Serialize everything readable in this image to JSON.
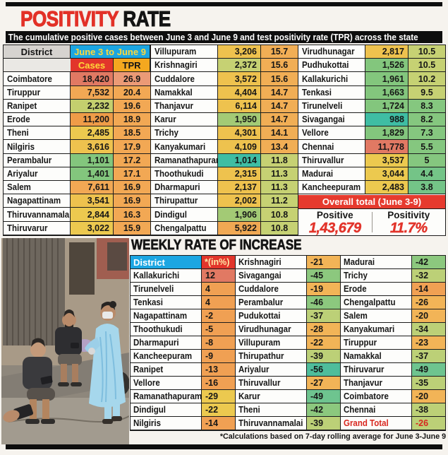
{
  "header": {
    "title_red": "POSITIVITY",
    "title_rest": " RATE",
    "subtitle": "The cumulative positive cases between June 3 and June 9 and test positivity rate (TPR) across the state"
  },
  "colors": {
    "accent_red": "#e2352b",
    "accent_blue": "#1ca6e2",
    "accent_orange_header": "#f4a81f",
    "header_yellow_text": "#ffd83a"
  },
  "main_table": {
    "headers": {
      "district": "District",
      "period": "June 3 to June 9",
      "cases": "Cases",
      "tpr": "TPR"
    },
    "groups": [
      {
        "rows": [
          {
            "district": "Coimbatore",
            "cases": "18,420",
            "tpr": "26.9",
            "cases_bg": "#e17963",
            "tpr_bg": "#eb9a76"
          },
          {
            "district": "Tiruppur",
            "cases": "7,532",
            "tpr": "20.4",
            "cases_bg": "#f2a854",
            "tpr_bg": "#f2a854"
          },
          {
            "district": "Ranipet",
            "cases": "2,232",
            "tpr": "19.6",
            "cases_bg": "#c4cf6e",
            "tpr_bg": "#f2a854"
          },
          {
            "district": "Erode",
            "cases": "11,200",
            "tpr": "18.9",
            "cases_bg": "#ef9c48",
            "tpr_bg": "#f2a854"
          },
          {
            "district": "Theni",
            "cases": "2,485",
            "tpr": "18.5",
            "cases_bg": "#ecc94f",
            "tpr_bg": "#f2a854"
          },
          {
            "district": "Nilgiris",
            "cases": "3,616",
            "tpr": "17.9",
            "cases_bg": "#eec24e",
            "tpr_bg": "#f2a854"
          },
          {
            "district": "Perambalur",
            "cases": "1,101",
            "tpr": "17.2",
            "cases_bg": "#83c67d",
            "tpr_bg": "#f2a854"
          },
          {
            "district": "Ariyalur",
            "cases": "1,401",
            "tpr": "17.1",
            "cases_bg": "#83c67d",
            "tpr_bg": "#f2a854"
          },
          {
            "district": "Salem",
            "cases": "7,611",
            "tpr": "16.9",
            "cases_bg": "#f2a854",
            "tpr_bg": "#f2a854"
          },
          {
            "district": "Nagapattinam",
            "cases": "3,541",
            "tpr": "16.9",
            "cases_bg": "#eec24e",
            "tpr_bg": "#f2a854"
          },
          {
            "district": "Thiruvannamalai",
            "cases": "2,844",
            "tpr": "16.3",
            "cases_bg": "#ecc94f",
            "tpr_bg": "#f2a854"
          },
          {
            "district": "Thiruvarur",
            "cases": "3,022",
            "tpr": "15.9",
            "cases_bg": "#ecc94f",
            "tpr_bg": "#f2a854"
          }
        ]
      },
      {
        "rows": [
          {
            "district": "Villupuram",
            "cases": "3,206",
            "tpr": "15.7",
            "cases_bg": "#eec24e",
            "tpr_bg": "#f1ae55"
          },
          {
            "district": "Krishnagiri",
            "cases": "2,372",
            "tpr": "15.6",
            "cases_bg": "#c6d173",
            "tpr_bg": "#f1ae55"
          },
          {
            "district": "Cuddalore",
            "cases": "3,572",
            "tpr": "15.6",
            "cases_bg": "#eec24e",
            "tpr_bg": "#f1ae55"
          },
          {
            "district": "Namakkal",
            "cases": "4,404",
            "tpr": "14.7",
            "cases_bg": "#eec24e",
            "tpr_bg": "#f1ae55"
          },
          {
            "district": "Thanjavur",
            "cases": "6,114",
            "tpr": "14.7",
            "cases_bg": "#eec24e",
            "tpr_bg": "#f1ae55"
          },
          {
            "district": "Karur",
            "cases": "1,950",
            "tpr": "14.7",
            "cases_bg": "#a3ca75",
            "tpr_bg": "#f1ae55"
          },
          {
            "district": "Trichy",
            "cases": "4,301",
            "tpr": "14.1",
            "cases_bg": "#eec24e",
            "tpr_bg": "#f1ae55"
          },
          {
            "district": "Kanyakumari",
            "cases": "4,109",
            "tpr": "13.4",
            "cases_bg": "#eec24e",
            "tpr_bg": "#f1ae55"
          },
          {
            "district": "Ramanathapuram",
            "cases": "1,014",
            "tpr": "11.8",
            "cases_bg": "#3fbda3",
            "tpr_bg": "#c6d173"
          },
          {
            "district": "Thoothukudi",
            "cases": "2,315",
            "tpr": "11.3",
            "cases_bg": "#eec24e",
            "tpr_bg": "#c6d173"
          },
          {
            "district": "Dharmapuri",
            "cases": "2,137",
            "tpr": "11.3",
            "cases_bg": "#eec24e",
            "tpr_bg": "#c6d173"
          },
          {
            "district": "Thirupattur",
            "cases": "2,002",
            "tpr": "11.2",
            "cases_bg": "#eec24e",
            "tpr_bg": "#c6d173"
          },
          {
            "district": "Dindigul",
            "cases": "1,906",
            "tpr": "10.8",
            "cases_bg": "#a3ca75",
            "tpr_bg": "#c6d173"
          },
          {
            "district": "Chengalpattu",
            "cases": "5,922",
            "tpr": "10.8",
            "cases_bg": "#f0a853",
            "tpr_bg": "#c6d173"
          }
        ]
      },
      {
        "rows": [
          {
            "district": "Virudhunagar",
            "cases": "2,817",
            "tpr": "10.5",
            "cases_bg": "#eec24e",
            "tpr_bg": "#c6d173"
          },
          {
            "district": "Pudhukottai",
            "cases": "1,526",
            "tpr": "10.5",
            "cases_bg": "#83c67d",
            "tpr_bg": "#c6d173"
          },
          {
            "district": "Kallakurichi",
            "cases": "1,961",
            "tpr": "10.2",
            "cases_bg": "#83c67d",
            "tpr_bg": "#c6d173"
          },
          {
            "district": "Tenkasi",
            "cases": "1,663",
            "tpr": "9.5",
            "cases_bg": "#83c67d",
            "tpr_bg": "#c6d173"
          },
          {
            "district": "Tirunelveli",
            "cases": "1,724",
            "tpr": "8.3",
            "cases_bg": "#83c67d",
            "tpr_bg": "#85c77f"
          },
          {
            "district": "Sivagangai",
            "cases": "988",
            "tpr": "8.2",
            "cases_bg": "#3fbda3",
            "tpr_bg": "#85c77f"
          },
          {
            "district": "Vellore",
            "cases": "1,829",
            "tpr": "7.3",
            "cases_bg": "#83c67d",
            "tpr_bg": "#85c77f"
          },
          {
            "district": "Chennai",
            "cases": "11,778",
            "tpr": "5.5",
            "cases_bg": "#e17963",
            "tpr_bg": "#85c77f"
          },
          {
            "district": "Thiruvallur",
            "cases": "3,537",
            "tpr": "5",
            "cases_bg": "#ecc94f",
            "tpr_bg": "#85c77f"
          },
          {
            "district": "Madurai",
            "cases": "3,044",
            "tpr": "4.4",
            "cases_bg": "#ecc94f",
            "tpr_bg": "#74c487"
          },
          {
            "district": "Kancheepuram",
            "cases": "2,483",
            "tpr": "3.8",
            "cases_bg": "#ecc94f",
            "tpr_bg": "#74c487"
          }
        ]
      }
    ],
    "overall": {
      "banner_label": "Overall total (June 3-9)",
      "positive_label": "Positive",
      "positive_value": "1,43,679",
      "positivity_label": "Positivity",
      "positivity_value": "11.7%"
    }
  },
  "weekly": {
    "title": "WEEKLY RATE OF INCREASE",
    "headers": {
      "district": "District",
      "value": "*(in%)"
    },
    "groups": [
      {
        "rows": [
          {
            "district": "Kallakurichi",
            "value": "12",
            "bg": "#e17963"
          },
          {
            "district": "Tirunelveli",
            "value": "4",
            "bg": "#f0a053"
          },
          {
            "district": "Tenkasi",
            "value": "4",
            "bg": "#f0a053"
          },
          {
            "district": "Nagapattinam",
            "value": "-2",
            "bg": "#f0a053"
          },
          {
            "district": "Thoothukudi",
            "value": "-5",
            "bg": "#f0a053"
          },
          {
            "district": "Dharmapuri",
            "value": "-8",
            "bg": "#f0a053"
          },
          {
            "district": "Kancheepuram",
            "value": "-9",
            "bg": "#f0a053"
          },
          {
            "district": "Ranipet",
            "value": "-13",
            "bg": "#f0a053"
          },
          {
            "district": "Vellore",
            "value": "-16",
            "bg": "#f0a053"
          },
          {
            "district": "Ramanathapuram",
            "value": "-29",
            "bg": "#ecc94f"
          },
          {
            "district": "Dindigul",
            "value": "-22",
            "bg": "#ecc94f"
          },
          {
            "district": "Nilgiris",
            "value": "-14",
            "bg": "#f0a053"
          }
        ]
      },
      {
        "rows": [
          {
            "district": "Krishnagiri",
            "value": "-21",
            "bg": "#f2b457"
          },
          {
            "district": "Sivagangai",
            "value": "-45",
            "bg": "#8cc87e"
          },
          {
            "district": "Cuddalore",
            "value": "-19",
            "bg": "#f2b457"
          },
          {
            "district": "Perambalur",
            "value": "-46",
            "bg": "#8cc87e"
          },
          {
            "district": "Pudukottai",
            "value": "-37",
            "bg": "#bcd077"
          },
          {
            "district": "Virudhunagar",
            "value": "-28",
            "bg": "#f2b457"
          },
          {
            "district": "Villupuram",
            "value": "-22",
            "bg": "#f2b457"
          },
          {
            "district": "Thirupathur",
            "value": "-39",
            "bg": "#bcd077"
          },
          {
            "district": "Ariyalur",
            "value": "-56",
            "bg": "#4fbd9b"
          },
          {
            "district": "Thiruvallur",
            "value": "-27",
            "bg": "#f2b457"
          },
          {
            "district": "Karur",
            "value": "-49",
            "bg": "#6ec48f"
          },
          {
            "district": "Theni",
            "value": "-42",
            "bg": "#8cc87e"
          },
          {
            "district": "Thiruvannamalai",
            "value": "-39",
            "bg": "#bcd077"
          }
        ]
      },
      {
        "rows": [
          {
            "district": "Madurai",
            "value": "-42",
            "bg": "#8cc87e"
          },
          {
            "district": "Trichy",
            "value": "-32",
            "bg": "#bcd077"
          },
          {
            "district": "Erode",
            "value": "-14",
            "bg": "#f0a053"
          },
          {
            "district": "Chengalpattu",
            "value": "-26",
            "bg": "#f2b457"
          },
          {
            "district": "Salem",
            "value": "-20",
            "bg": "#f2b457"
          },
          {
            "district": "Kanyakumari",
            "value": "-34",
            "bg": "#bcd077"
          },
          {
            "district": "Tiruppur",
            "value": "-23",
            "bg": "#f2b457"
          },
          {
            "district": "Namakkal",
            "value": "-37",
            "bg": "#bcd077"
          },
          {
            "district": "Thiruvarur",
            "value": "-49",
            "bg": "#6ec48f"
          },
          {
            "district": "Thanjavur",
            "value": "-35",
            "bg": "#bcd077"
          },
          {
            "district": "Coimbatore",
            "value": "-20",
            "bg": "#f2b457"
          },
          {
            "district": "Chennai",
            "value": "-38",
            "bg": "#bcd077"
          },
          {
            "district": "Grand Total",
            "value": "-26",
            "bg": "#bcd077",
            "fg": "#d8271f"
          }
        ]
      }
    ],
    "footnote": "*Calculations based on 7-day rolling average for June 3-June 9"
  },
  "chart_data": [
    {
      "type": "table",
      "title": "POSITIVITY RATE",
      "subtitle": "The cumulative positive cases between June 3 and June 9 and test positivity rate (TPR) across the state",
      "columns": [
        "District",
        "Cases (June 3 to June 9)",
        "TPR (June 3 to June 9)"
      ],
      "rows": [
        [
          "Coimbatore",
          18420,
          26.9
        ],
        [
          "Tiruppur",
          7532,
          20.4
        ],
        [
          "Ranipet",
          2232,
          19.6
        ],
        [
          "Erode",
          11200,
          18.9
        ],
        [
          "Theni",
          2485,
          18.5
        ],
        [
          "Nilgiris",
          3616,
          17.9
        ],
        [
          "Perambalur",
          1101,
          17.2
        ],
        [
          "Ariyalur",
          1401,
          17.1
        ],
        [
          "Salem",
          7611,
          16.9
        ],
        [
          "Nagapattinam",
          3541,
          16.9
        ],
        [
          "Thiruvannamalai",
          2844,
          16.3
        ],
        [
          "Thiruvarur",
          3022,
          15.9
        ],
        [
          "Villupuram",
          3206,
          15.7
        ],
        [
          "Krishnagiri",
          2372,
          15.6
        ],
        [
          "Cuddalore",
          3572,
          15.6
        ],
        [
          "Namakkal",
          4404,
          14.7
        ],
        [
          "Thanjavur",
          6114,
          14.7
        ],
        [
          "Karur",
          1950,
          14.7
        ],
        [
          "Trichy",
          4301,
          14.1
        ],
        [
          "Kanyakumari",
          4109,
          13.4
        ],
        [
          "Ramanathapuram",
          1014,
          11.8
        ],
        [
          "Thoothukudi",
          2315,
          11.3
        ],
        [
          "Dharmapuri",
          2137,
          11.3
        ],
        [
          "Thirupattur",
          2002,
          11.2
        ],
        [
          "Dindigul",
          1906,
          10.8
        ],
        [
          "Chengalpattu",
          5922,
          10.8
        ],
        [
          "Virudhunagar",
          2817,
          10.5
        ],
        [
          "Pudhukottai",
          1526,
          10.5
        ],
        [
          "Kallakurichi",
          1961,
          10.2
        ],
        [
          "Tenkasi",
          1663,
          9.5
        ],
        [
          "Tirunelveli",
          1724,
          8.3
        ],
        [
          "Sivagangai",
          988,
          8.2
        ],
        [
          "Vellore",
          1829,
          7.3
        ],
        [
          "Chennai",
          11778,
          5.5
        ],
        [
          "Thiruvallur",
          3537,
          5
        ],
        [
          "Madurai",
          3044,
          4.4
        ],
        [
          "Kancheepuram",
          2483,
          3.8
        ]
      ],
      "summary": {
        "label": "Overall total (June 3-9)",
        "positive": 143679,
        "positivity_pct": 11.7
      }
    },
    {
      "type": "table",
      "title": "WEEKLY RATE OF INCREASE",
      "columns": [
        "District",
        "*(in%)"
      ],
      "rows": [
        [
          "Kallakurichi",
          12
        ],
        [
          "Tirunelveli",
          4
        ],
        [
          "Tenkasi",
          4
        ],
        [
          "Nagapattinam",
          -2
        ],
        [
          "Thoothukudi",
          -5
        ],
        [
          "Dharmapuri",
          -8
        ],
        [
          "Kancheepuram",
          -9
        ],
        [
          "Ranipet",
          -13
        ],
        [
          "Vellore",
          -16
        ],
        [
          "Ramanathapuram",
          -29
        ],
        [
          "Dindigul",
          -22
        ],
        [
          "Nilgiris",
          -14
        ],
        [
          "Krishnagiri",
          -21
        ],
        [
          "Sivagangai",
          -45
        ],
        [
          "Cuddalore",
          -19
        ],
        [
          "Perambalur",
          -46
        ],
        [
          "Pudukottai",
          -37
        ],
        [
          "Virudhunagar",
          -28
        ],
        [
          "Villupuram",
          -22
        ],
        [
          "Thirupathur",
          -39
        ],
        [
          "Ariyalur",
          -56
        ],
        [
          "Thiruvallur",
          -27
        ],
        [
          "Karur",
          -49
        ],
        [
          "Theni",
          -42
        ],
        [
          "Thiruvannamalai",
          -39
        ],
        [
          "Madurai",
          -42
        ],
        [
          "Trichy",
          -32
        ],
        [
          "Erode",
          -14
        ],
        [
          "Chengalpattu",
          -26
        ],
        [
          "Salem",
          -20
        ],
        [
          "Kanyakumari",
          -34
        ],
        [
          "Tiruppur",
          -23
        ],
        [
          "Namakkal",
          -37
        ],
        [
          "Thiruvarur",
          -49
        ],
        [
          "Thanjavur",
          -35
        ],
        [
          "Coimbatore",
          -20
        ],
        [
          "Chennai",
          -38
        ],
        [
          "Grand Total",
          -26
        ]
      ],
      "footnote": "*Calculations based on 7-day rolling average for June 3-June 9"
    }
  ]
}
